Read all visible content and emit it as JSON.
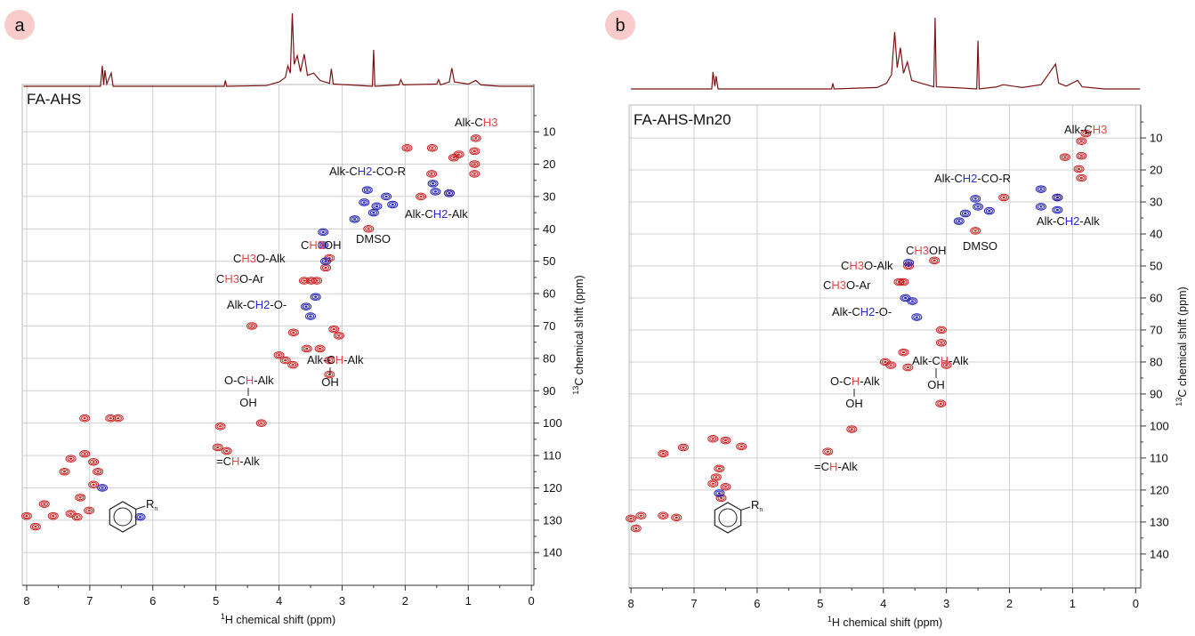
{
  "chart_data": [
    {
      "type": "scatter",
      "panel_letter": "a",
      "panel_name": "FA-AHS",
      "xlabel_sup": "1",
      "xlabel": "H chemical shift (ppm)",
      "ylabel_sup": "13",
      "ylabel": "C chemical shift (ppm)",
      "xlim": [
        8.07,
        -0.04
      ],
      "ylim": [
        -4.6,
        150.1
      ],
      "y_inverted": true,
      "grid": true,
      "xticks": [
        8,
        7,
        6,
        5,
        4,
        3,
        2,
        1,
        0
      ],
      "yticks": [
        10,
        20,
        30,
        40,
        50,
        60,
        70,
        80,
        90,
        100,
        110,
        120,
        130,
        140
      ],
      "spectrum": {
        "color": "#7a1414",
        "x": [
          8.05,
          6.83,
          6.8,
          6.78,
          6.76,
          6.73,
          6.66,
          6.63,
          4.87,
          4.85,
          4.83,
          4.2,
          4.0,
          3.9,
          3.86,
          3.82,
          3.79,
          3.76,
          3.71,
          3.66,
          3.6,
          3.55,
          3.45,
          3.35,
          3.2,
          3.17,
          3.14,
          2.9,
          2.52,
          2.5,
          2.48,
          2.1,
          2.07,
          2.03,
          1.5,
          1.47,
          1.44,
          1.3,
          1.26,
          1.22,
          1.0,
          0.88,
          0.8,
          0.5,
          -0.03
        ],
        "values": [
          0,
          0,
          28,
          2,
          22,
          3,
          18,
          0,
          0,
          8,
          0,
          1,
          6,
          12,
          28,
          18,
          100,
          30,
          42,
          20,
          44,
          15,
          18,
          8,
          4,
          24,
          3,
          2,
          0,
          50,
          0,
          2,
          9,
          2,
          3,
          9,
          2,
          6,
          25,
          6,
          3,
          8,
          2,
          0,
          0
        ]
      },
      "series": [
        {
          "color": "#c81e1e",
          "x": [
            0.88,
            0.9,
            0.9,
            0.9,
            1.15,
            1.23,
            1.57,
            1.58,
            1.97,
            1.75,
            1.3,
            2.58,
            3.2,
            3.26,
            3.49,
            3.6,
            3.4,
            3.13,
            3.05,
            3.77,
            3.56,
            3.35,
            4.43,
            3.9,
            3.78,
            4.0,
            3.2,
            3.2,
            4.97,
            4.83,
            4.93,
            4.28,
            7.08,
            6.67,
            6.55,
            7.08,
            6.94,
            6.87,
            6.94,
            7.15,
            7.01,
            7.3,
            7.4,
            7.72,
            7.58,
            8.0,
            7.86,
            7.3,
            7.2
          ],
          "values": [
            12,
            16,
            20,
            23,
            17,
            18,
            15,
            23,
            15,
            30,
            29,
            40,
            49,
            52,
            56,
            56,
            56,
            71,
            73,
            72,
            77,
            77,
            70,
            80.6,
            82,
            79,
            80.6,
            85,
            107.5,
            108.6,
            101,
            100,
            98.5,
            98.5,
            98.5,
            109.5,
            112,
            115,
            119,
            123,
            127,
            111,
            115,
            125,
            128.7,
            128.7,
            132,
            128,
            129
          ]
        },
        {
          "color": "#1c1cb4",
          "x": [
            1.3,
            1.56,
            1.52,
            2.2,
            2.5,
            2.65,
            2.8,
            2.3,
            2.6,
            2.45,
            3.26,
            3.42,
            3.5,
            3.57,
            3.3,
            3.3,
            6.8,
            6.2
          ],
          "values": [
            29,
            26,
            28.5,
            32.5,
            35,
            31.8,
            37,
            30,
            28,
            33,
            50,
            61,
            67,
            64,
            41,
            45,
            120,
            129
          ]
        }
      ],
      "annotations": [
        {
          "parts": [
            {
              "text": "Alk-C"
            },
            {
              "text": "H3",
              "color": "#e8474a"
            }
          ]
        },
        {
          "parts": [
            {
              "text": "Alk-C"
            },
            {
              "text": "H2",
              "color": "#2b2bd0"
            },
            {
              "text": "-CO-R"
            }
          ]
        },
        {
          "parts": [
            {
              "text": "Alk-C"
            },
            {
              "text": "H2",
              "color": "#2b2bd0"
            },
            {
              "text": "-Alk"
            }
          ]
        },
        {
          "parts": [
            {
              "text": "DMSO"
            }
          ]
        },
        {
          "parts": [
            {
              "text": "C"
            },
            {
              "text": "H3",
              "color": "#e8474a"
            },
            {
              "text": "OH"
            }
          ]
        },
        {
          "parts": [
            {
              "text": "C"
            },
            {
              "text": "H3",
              "color": "#e8474a"
            },
            {
              "text": "O-Alk"
            }
          ]
        },
        {
          "parts": [
            {
              "text": "C"
            },
            {
              "text": "H3",
              "color": "#e8474a"
            },
            {
              "text": "O-Ar"
            }
          ]
        },
        {
          "parts": [
            {
              "text": "Alk-C"
            },
            {
              "text": "H2",
              "color": "#2b2bd0"
            },
            {
              "text": "-O-"
            }
          ]
        },
        {
          "parts": [
            {
              "text": "Alk-C"
            },
            {
              "text": "H",
              "color": "#e8474a"
            },
            {
              "text": "-Alk"
            }
          ],
          "below": "OH"
        },
        {
          "parts": [
            {
              "text": "O-C"
            },
            {
              "text": "H",
              "color": "#e8474a"
            },
            {
              "text": "-Alk"
            }
          ],
          "below": "OH"
        },
        {
          "parts": [
            {
              "text": "=C"
            },
            {
              "text": "H",
              "color": "#e8474a"
            },
            {
              "text": "-Alk"
            }
          ]
        }
      ],
      "ring_label": "R",
      "ring_subscript": "n"
    },
    {
      "type": "scatter",
      "panel_letter": "b",
      "panel_name": "FA-AHS-Mn20",
      "xlabel_sup": "1",
      "xlabel": "H chemical shift (ppm)",
      "ylabel_sup": "13",
      "ylabel": "C chemical shift (ppm)",
      "xlim": [
        8.03,
        -0.08
      ],
      "ylim": [
        -0.3,
        150.6
      ],
      "y_inverted": true,
      "grid": true,
      "xticks": [
        8,
        7,
        6,
        5,
        4,
        3,
        2,
        1,
        0
      ],
      "yticks": [
        10,
        20,
        30,
        40,
        50,
        60,
        70,
        80,
        90,
        100,
        110,
        120,
        130,
        140
      ],
      "spectrum": {
        "color": "#7a1414",
        "x": [
          8.0,
          6.72,
          6.7,
          6.67,
          6.65,
          6.62,
          4.82,
          4.8,
          4.78,
          4.1,
          3.95,
          3.87,
          3.82,
          3.78,
          3.73,
          3.68,
          3.62,
          3.55,
          3.4,
          3.2,
          3.18,
          3.16,
          2.9,
          2.52,
          2.5,
          2.48,
          2.2,
          2.1,
          1.8,
          1.5,
          1.27,
          1.22,
          1.1,
          0.92,
          0.85,
          0.5,
          -0.07
        ],
        "values": [
          0,
          0,
          24,
          4,
          18,
          0,
          0,
          8,
          0,
          2,
          8,
          20,
          80,
          30,
          58,
          22,
          38,
          12,
          8,
          3,
          100,
          3,
          2,
          0,
          68,
          0,
          3,
          6,
          2,
          6,
          35,
          8,
          4,
          12,
          3,
          0,
          0
        ]
      },
      "series": [
        {
          "color": "#c81e1e",
          "x": [
            0.79,
            0.86,
            0.86,
            1.12,
            0.9,
            0.86,
            1.24,
            2.09,
            2.54,
            3.19,
            3.6,
            3.68,
            3.75,
            3.08,
            3.08,
            3.68,
            3.97,
            3.88,
            3.61,
            3.0,
            3.09,
            4.88,
            4.5,
            6.6,
            6.65,
            6.5,
            6.57,
            6.7,
            7.49,
            7.84,
            7.49,
            7.28,
            7.92,
            8.0,
            7.17,
            6.25,
            6.5,
            6.7
          ],
          "values": [
            8.6,
            11,
            15.6,
            16,
            19.7,
            22.5,
            28.6,
            28.6,
            39,
            48.3,
            50,
            55,
            55,
            70,
            74,
            77,
            80,
            81,
            81.7,
            81,
            93,
            108,
            101,
            113.3,
            116,
            119,
            122.5,
            118,
            108.6,
            128,
            128,
            128.6,
            132,
            128.9,
            106.7,
            106.4,
            104.5,
            104
          ]
        },
        {
          "color": "#1c1cb4",
          "x": [
            1.24,
            1.24,
            1.5,
            1.5,
            2.32,
            2.5,
            2.54,
            2.7,
            2.8,
            3.6,
            3.54,
            3.47,
            3.65,
            6.6
          ],
          "values": [
            28.6,
            32.5,
            26,
            31.5,
            32.8,
            31.5,
            29,
            33.6,
            36,
            49,
            61,
            66,
            60,
            121
          ]
        }
      ],
      "annotations": [
        {
          "parts": [
            {
              "text": "Alk-C"
            },
            {
              "text": "H3",
              "color": "#e8474a"
            }
          ]
        },
        {
          "parts": [
            {
              "text": "Alk-C"
            },
            {
              "text": "H2",
              "color": "#2b2bd0"
            },
            {
              "text": "-CO-R"
            }
          ]
        },
        {
          "parts": [
            {
              "text": "Alk-C"
            },
            {
              "text": "H2",
              "color": "#2b2bd0"
            },
            {
              "text": "-Alk"
            }
          ]
        },
        {
          "parts": [
            {
              "text": "DMSO"
            }
          ]
        },
        {
          "parts": [
            {
              "text": "C"
            },
            {
              "text": "H3",
              "color": "#e8474a"
            },
            {
              "text": "OH"
            }
          ]
        },
        {
          "parts": [
            {
              "text": "C"
            },
            {
              "text": "H3",
              "color": "#e8474a"
            },
            {
              "text": "O-Alk"
            }
          ]
        },
        {
          "parts": [
            {
              "text": "C"
            },
            {
              "text": "H3",
              "color": "#e8474a"
            },
            {
              "text": "O-Ar"
            }
          ]
        },
        {
          "parts": [
            {
              "text": "Alk-C"
            },
            {
              "text": "H2",
              "color": "#2b2bd0"
            },
            {
              "text": "-O-"
            }
          ]
        },
        {
          "parts": [
            {
              "text": "Alk-C"
            },
            {
              "text": "H",
              "color": "#e8474a"
            },
            {
              "text": "-Alk"
            }
          ],
          "below": "OH"
        },
        {
          "parts": [
            {
              "text": "O-C"
            },
            {
              "text": "H",
              "color": "#e8474a"
            },
            {
              "text": "-Alk"
            }
          ],
          "below": "OH"
        },
        {
          "parts": [
            {
              "text": "=C"
            },
            {
              "text": "H",
              "color": "#e8474a"
            },
            {
              "text": "-Alk"
            }
          ]
        }
      ],
      "ring_label": "R",
      "ring_subscript": "n"
    }
  ]
}
